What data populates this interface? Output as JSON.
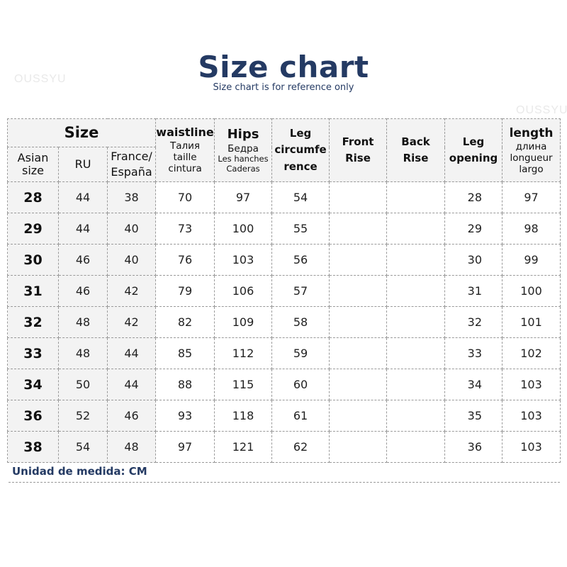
{
  "title": "Size chart",
  "subtitle": "Size chart is for reference only",
  "watermark": "OUSSYU",
  "header": {
    "size": "Size",
    "asian_size": "Asian size",
    "ru": "RU",
    "france_espana": "France/ España",
    "waistline": "waistline",
    "waistline_sub1": "Талия",
    "waistline_sub2": "taille",
    "waistline_sub3": "cintura",
    "hips": "Hips",
    "hips_sub1": "Бедра",
    "hips_sub2": "Les hanches",
    "hips_sub3": "Caderas",
    "leg_circumference": "Leg circumfe rence",
    "front_rise": "Front Rise",
    "back_rise": "Back Rise",
    "leg_opening": "Leg opening",
    "length": "length",
    "length_sub1": "длина",
    "length_sub2": "longueur",
    "length_sub3": "largo"
  },
  "rows": [
    {
      "asian": "28",
      "ru": "44",
      "fr": "38",
      "waist": "70",
      "hips": "97",
      "leg": "54",
      "front": "",
      "back": "",
      "opening": "28",
      "length": "97"
    },
    {
      "asian": "29",
      "ru": "44",
      "fr": "40",
      "waist": "73",
      "hips": "100",
      "leg": "55",
      "front": "",
      "back": "",
      "opening": "29",
      "length": "98"
    },
    {
      "asian": "30",
      "ru": "46",
      "fr": "40",
      "waist": "76",
      "hips": "103",
      "leg": "56",
      "front": "",
      "back": "",
      "opening": "30",
      "length": "99"
    },
    {
      "asian": "31",
      "ru": "46",
      "fr": "42",
      "waist": "79",
      "hips": "106",
      "leg": "57",
      "front": "",
      "back": "",
      "opening": "31",
      "length": "100"
    },
    {
      "asian": "32",
      "ru": "48",
      "fr": "42",
      "waist": "82",
      "hips": "109",
      "leg": "58",
      "front": "",
      "back": "",
      "opening": "32",
      "length": "101"
    },
    {
      "asian": "33",
      "ru": "48",
      "fr": "44",
      "waist": "85",
      "hips": "112",
      "leg": "59",
      "front": "",
      "back": "",
      "opening": "33",
      "length": "102"
    },
    {
      "asian": "34",
      "ru": "50",
      "fr": "44",
      "waist": "88",
      "hips": "115",
      "leg": "60",
      "front": "",
      "back": "",
      "opening": "34",
      "length": "103"
    },
    {
      "asian": "36",
      "ru": "52",
      "fr": "46",
      "waist": "93",
      "hips": "118",
      "leg": "61",
      "front": "",
      "back": "",
      "opening": "35",
      "length": "103"
    },
    {
      "asian": "38",
      "ru": "54",
      "fr": "48",
      "waist": "97",
      "hips": "121",
      "leg": "62",
      "front": "",
      "back": "",
      "opening": "36",
      "length": "103"
    }
  ],
  "footer": "Unidad de medida: CM",
  "colors": {
    "title": "#243a63",
    "header_bg": "#f3f3f3",
    "border": "#9a9a9a"
  }
}
